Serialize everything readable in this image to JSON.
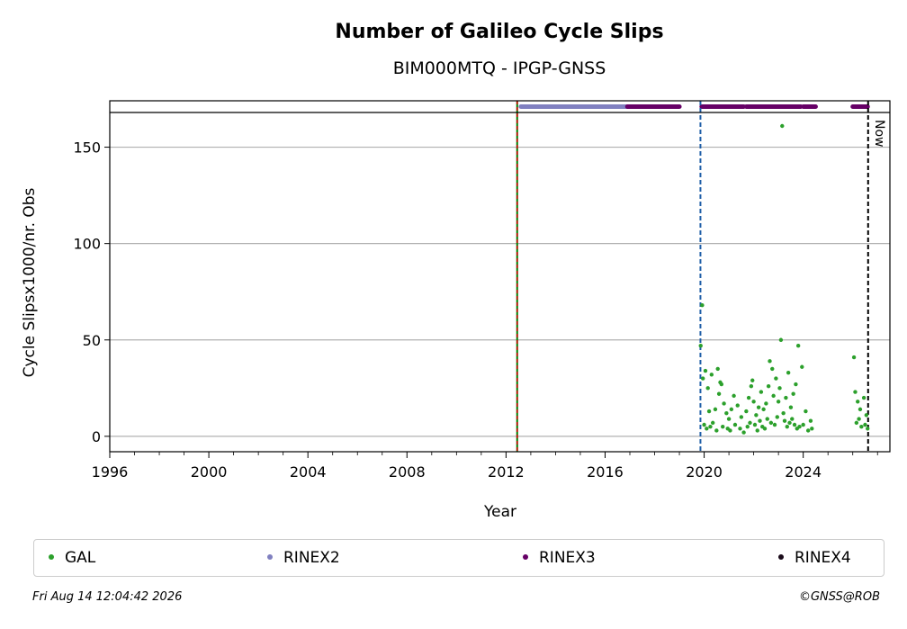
{
  "chart_data": {
    "type": "scatter",
    "title": "Number of Galileo Cycle Slips",
    "subtitle": "BIM000MTQ - IPGP-GNSS",
    "xlabel": "Year",
    "ylabel": "Cycle Slipsx1000/nr. Obs",
    "xlim": [
      1996,
      2027.5
    ],
    "ylim": [
      -8,
      168
    ],
    "x_ticks": [
      1996,
      2000,
      2004,
      2008,
      2012,
      2016,
      2020,
      2024
    ],
    "y_ticks": [
      0,
      50,
      100,
      150
    ],
    "grid": true,
    "vertical_lines": [
      {
        "x": 2012.45,
        "style": "red-green-dashed"
      },
      {
        "x": 2019.85,
        "style": "blue-dashed"
      },
      {
        "x": 2026.62,
        "style": "black-dashed",
        "label": "Now"
      }
    ],
    "rinex_bars": [
      {
        "name": "RINEX2",
        "color": "#8080c0",
        "segments": [
          [
            2012.6,
            2016.9
          ]
        ]
      },
      {
        "name": "RINEX3",
        "color": "#660066",
        "segments": [
          [
            2016.9,
            2019.0
          ],
          [
            2019.9,
            2021.6
          ],
          [
            2021.7,
            2023.9
          ],
          [
            2024.0,
            2024.5
          ],
          [
            2026.0,
            2026.6
          ]
        ]
      }
    ],
    "series": [
      {
        "name": "GAL",
        "color": "#2ca02c",
        "points": [
          [
            2019.86,
            47
          ],
          [
            2019.92,
            68
          ],
          [
            2019.95,
            30
          ],
          [
            2020.05,
            34
          ],
          [
            2020.15,
            25
          ],
          [
            2020.2,
            13
          ],
          [
            2020.3,
            32
          ],
          [
            2020.45,
            14
          ],
          [
            2020.55,
            35
          ],
          [
            2020.6,
            22
          ],
          [
            2020.65,
            28
          ],
          [
            2020.7,
            27
          ],
          [
            2020.8,
            17
          ],
          [
            2020.9,
            12
          ],
          [
            2021.0,
            9
          ],
          [
            2021.1,
            14
          ],
          [
            2021.2,
            21
          ],
          [
            2021.35,
            16
          ],
          [
            2021.5,
            10
          ],
          [
            2021.7,
            13
          ],
          [
            2021.8,
            20
          ],
          [
            2021.9,
            26
          ],
          [
            2021.95,
            29
          ],
          [
            2022.0,
            18
          ],
          [
            2022.1,
            11
          ],
          [
            2022.2,
            15
          ],
          [
            2022.3,
            23
          ],
          [
            2022.4,
            14
          ],
          [
            2022.5,
            17
          ],
          [
            2022.6,
            26
          ],
          [
            2022.65,
            39
          ],
          [
            2022.75,
            35
          ],
          [
            2022.8,
            21
          ],
          [
            2022.9,
            30
          ],
          [
            2023.0,
            18
          ],
          [
            2023.05,
            25
          ],
          [
            2023.1,
            50
          ],
          [
            2023.15,
            161
          ],
          [
            2023.2,
            12
          ],
          [
            2023.3,
            20
          ],
          [
            2023.4,
            33
          ],
          [
            2023.5,
            15
          ],
          [
            2023.6,
            22
          ],
          [
            2023.7,
            27
          ],
          [
            2023.8,
            47
          ],
          [
            2023.95,
            36
          ],
          [
            2024.1,
            13
          ],
          [
            2024.3,
            8
          ],
          [
            2026.05,
            41
          ],
          [
            2026.1,
            23
          ],
          [
            2026.2,
            18
          ],
          [
            2026.3,
            14
          ],
          [
            2026.45,
            20
          ],
          [
            2026.55,
            11
          ],
          [
            2020.0,
            6
          ],
          [
            2020.1,
            4
          ],
          [
            2020.25,
            5
          ],
          [
            2020.35,
            7
          ],
          [
            2020.5,
            3
          ],
          [
            2020.75,
            5
          ],
          [
            2020.95,
            4
          ],
          [
            2021.05,
            3
          ],
          [
            2021.25,
            6
          ],
          [
            2021.45,
            4
          ],
          [
            2021.6,
            2
          ],
          [
            2021.75,
            5
          ],
          [
            2021.85,
            7
          ],
          [
            2022.05,
            6
          ],
          [
            2022.15,
            3
          ],
          [
            2022.25,
            8
          ],
          [
            2022.35,
            5
          ],
          [
            2022.45,
            4
          ],
          [
            2022.55,
            9
          ],
          [
            2022.7,
            7
          ],
          [
            2022.85,
            6
          ],
          [
            2022.95,
            10
          ],
          [
            2023.25,
            8
          ],
          [
            2023.35,
            5
          ],
          [
            2023.45,
            7
          ],
          [
            2023.55,
            9
          ],
          [
            2023.65,
            6
          ],
          [
            2023.75,
            4
          ],
          [
            2023.85,
            5
          ],
          [
            2024.0,
            6
          ],
          [
            2024.2,
            3
          ],
          [
            2024.35,
            4
          ],
          [
            2026.15,
            7
          ],
          [
            2026.25,
            9
          ],
          [
            2026.35,
            5
          ],
          [
            2026.5,
            6
          ],
          [
            2026.6,
            4
          ]
        ]
      }
    ],
    "legend_placement": "bottom",
    "legend": [
      {
        "name": "GAL",
        "color": "#2ca02c"
      },
      {
        "name": "RINEX2",
        "color": "#8080c0"
      },
      {
        "name": "RINEX3",
        "color": "#660066"
      },
      {
        "name": "RINEX4",
        "color": "#1a0a1a"
      }
    ]
  },
  "footer": {
    "left": "Fri Aug 14 12:04:42 2026",
    "right": "©GNSS@ROB"
  }
}
